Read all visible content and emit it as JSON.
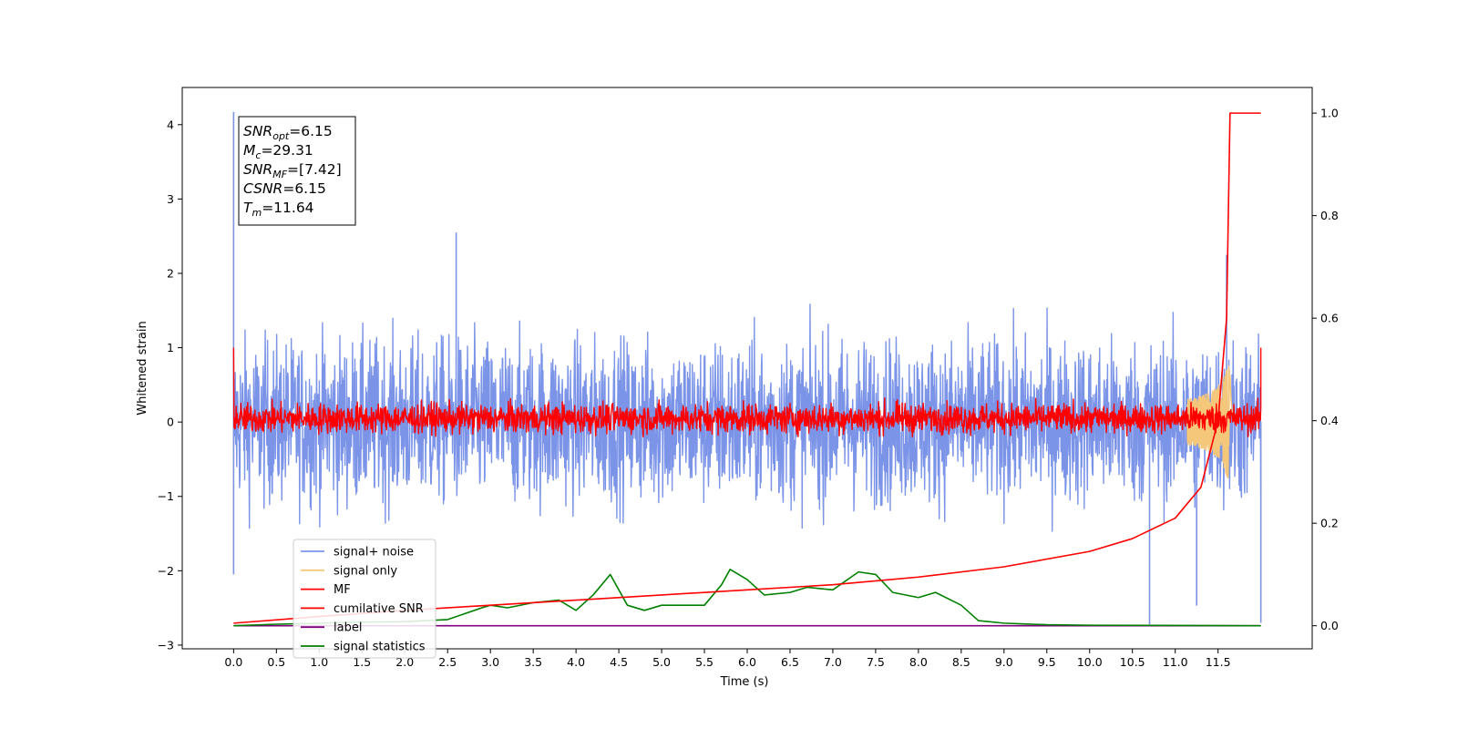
{
  "chart_data": {
    "type": "line",
    "xlabel": "Time (s)",
    "ylabel": "Whitened strain",
    "xlim": [
      -0.6,
      12.6
    ],
    "ylim": [
      -3.05,
      4.5
    ],
    "ylim_right": [
      -0.045,
      1.05
    ],
    "x_ticks": [
      "0.0",
      "0.5",
      "1.0",
      "1.5",
      "2.0",
      "2.5",
      "3.0",
      "3.5",
      "4.0",
      "4.5",
      "5.0",
      "5.5",
      "6.0",
      "6.5",
      "7.0",
      "7.5",
      "8.0",
      "8.5",
      "9.0",
      "9.5",
      "10.0",
      "10.5",
      "11.0",
      "11.5"
    ],
    "y_ticks": [
      "−3",
      "−2",
      "−1",
      "0",
      "1",
      "2",
      "3",
      "4"
    ],
    "y_ticks_right": [
      "0.0",
      "0.2",
      "0.4",
      "0.6",
      "0.8",
      "1.0"
    ],
    "grid": false,
    "legend_placement": "lower-left",
    "annotation": {
      "lines": [
        {
          "sym": "SNR",
          "sub": "opt",
          "val": "=6.15"
        },
        {
          "sym": "M",
          "sub": "c",
          "val": "=29.31"
        },
        {
          "sym": "SNR",
          "sub": "MF",
          "val": "=[7.42]"
        },
        {
          "sym": "CSNR",
          "sub": "",
          "val": "=6.15"
        },
        {
          "sym": "T",
          "sub": "m",
          "val": "=11.64"
        }
      ]
    },
    "series": [
      {
        "name": "signal+ noise",
        "color": "#7b94e8",
        "axis": "left",
        "envelope_typical": 1.3,
        "envelope_peak": 2.0,
        "spikes": [
          [
            0.0,
            4.17
          ],
          [
            0.0,
            -2.05
          ],
          [
            2.6,
            2.55
          ],
          [
            10.7,
            -2.72
          ],
          [
            11.25,
            -2.47
          ],
          [
            11.6,
            2.25
          ],
          [
            12.0,
            -2.7
          ]
        ]
      },
      {
        "name": "signal only",
        "color": "#f5c77a",
        "axis": "left",
        "chirp_peak": 0.8,
        "chirp_time": 11.64
      },
      {
        "name": "MF",
        "color": "#ff0000",
        "axis": "left",
        "baseline": 0.05,
        "amplitude": 0.25,
        "start_value": 1.0,
        "end_value": 1.0
      },
      {
        "name": "cumilative SNR",
        "color": "#ff0000",
        "axis": "right",
        "x": [
          0.0,
          1.0,
          2.0,
          3.0,
          4.0,
          5.0,
          6.0,
          7.0,
          8.0,
          9.0,
          10.0,
          10.5,
          11.0,
          11.3,
          11.5,
          11.6,
          11.64,
          12.0
        ],
        "y": [
          0.005,
          0.018,
          0.03,
          0.04,
          0.05,
          0.06,
          0.07,
          0.08,
          0.095,
          0.115,
          0.145,
          0.17,
          0.21,
          0.27,
          0.4,
          0.6,
          1.0,
          1.0
        ]
      },
      {
        "name": "label",
        "color": "#800080",
        "axis": "right",
        "x": [
          0.0,
          12.0
        ],
        "y": [
          0.0,
          0.0
        ]
      },
      {
        "name": "signal statistics",
        "color": "#008000",
        "axis": "right",
        "x": [
          0.0,
          0.5,
          1.0,
          1.5,
          2.0,
          2.5,
          2.9,
          3.0,
          3.2,
          3.5,
          3.8,
          4.0,
          4.2,
          4.4,
          4.6,
          4.8,
          5.0,
          5.5,
          5.7,
          5.8,
          6.0,
          6.2,
          6.5,
          6.7,
          7.0,
          7.3,
          7.5,
          7.7,
          8.0,
          8.2,
          8.5,
          8.7,
          9.0,
          9.5,
          10.0,
          12.0
        ],
        "y": [
          0.0,
          0.003,
          0.005,
          0.007,
          0.008,
          0.012,
          0.035,
          0.04,
          0.035,
          0.045,
          0.05,
          0.03,
          0.06,
          0.1,
          0.04,
          0.03,
          0.04,
          0.04,
          0.08,
          0.11,
          0.09,
          0.06,
          0.065,
          0.075,
          0.07,
          0.105,
          0.1,
          0.065,
          0.055,
          0.065,
          0.04,
          0.01,
          0.005,
          0.002,
          0.001,
          0.0
        ]
      }
    ]
  }
}
